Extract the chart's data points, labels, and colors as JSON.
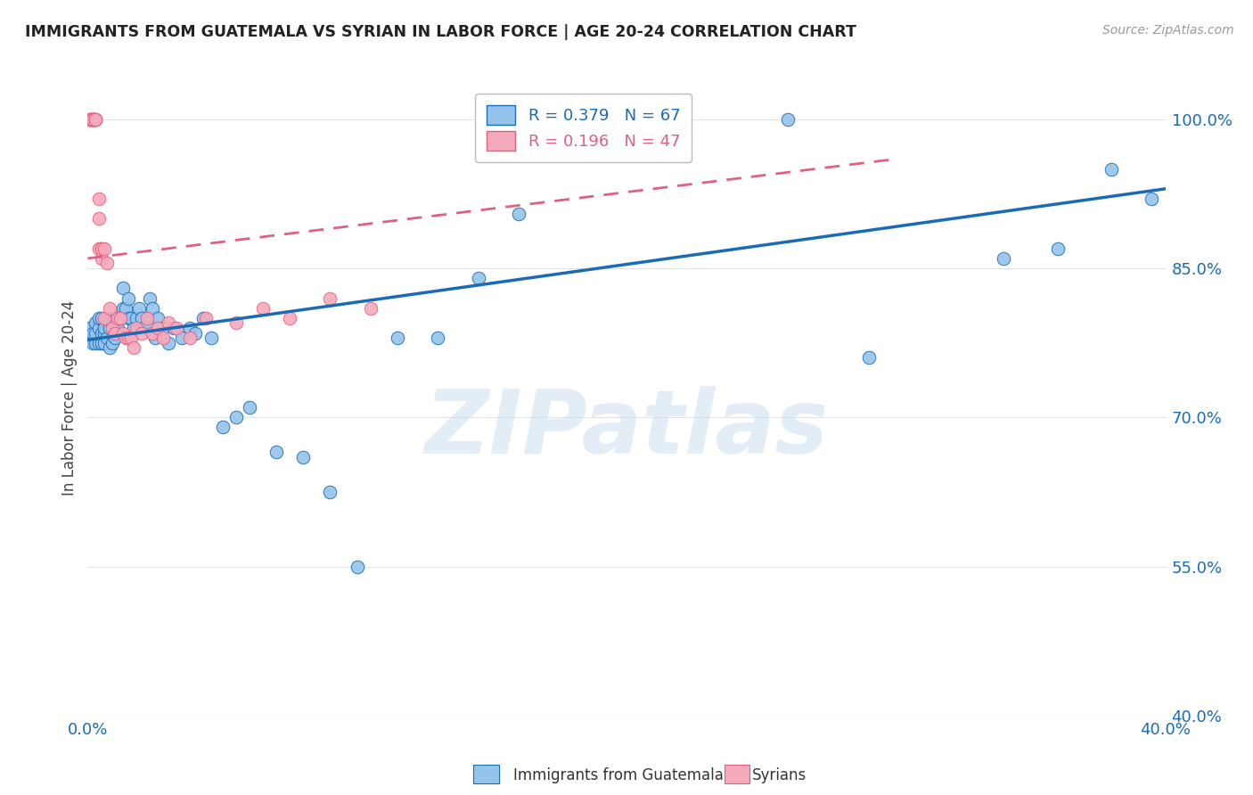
{
  "title": "IMMIGRANTS FROM GUATEMALA VS SYRIAN IN LABOR FORCE | AGE 20-24 CORRELATION CHART",
  "source": "Source: ZipAtlas.com",
  "ylabel": "In Labor Force | Age 20-24",
  "xlim": [
    0.0,
    0.4
  ],
  "ylim": [
    0.4,
    1.04
  ],
  "xticks": [
    0.0,
    0.05,
    0.1,
    0.15,
    0.2,
    0.25,
    0.3,
    0.35,
    0.4
  ],
  "yticks": [
    0.4,
    0.55,
    0.7,
    0.85,
    1.0
  ],
  "ytick_labels": [
    "40.0%",
    "55.0%",
    "70.0%",
    "85.0%",
    "100.0%"
  ],
  "xtick_labels": [
    "0.0%",
    "",
    "",
    "",
    "",
    "",
    "",
    "",
    "40.0%"
  ],
  "r_guatemala": 0.379,
  "n_guatemala": 67,
  "r_syrian": 0.196,
  "n_syrian": 47,
  "color_guatemala": "#94C4EC",
  "color_syrian": "#F5AABB",
  "trendline_guatemala_color": "#1A6BB5",
  "trendline_syrian_color": "#E06080",
  "watermark": "ZIPatlas",
  "background_color": "#ffffff",
  "guatemala_x": [
    0.001,
    0.001,
    0.002,
    0.002,
    0.003,
    0.003,
    0.003,
    0.004,
    0.004,
    0.004,
    0.005,
    0.005,
    0.005,
    0.006,
    0.006,
    0.006,
    0.007,
    0.007,
    0.008,
    0.008,
    0.009,
    0.009,
    0.01,
    0.01,
    0.011,
    0.012,
    0.013,
    0.013,
    0.014,
    0.015,
    0.015,
    0.016,
    0.017,
    0.018,
    0.019,
    0.02,
    0.021,
    0.022,
    0.023,
    0.024,
    0.025,
    0.026,
    0.028,
    0.03,
    0.032,
    0.035,
    0.038,
    0.04,
    0.043,
    0.046,
    0.05,
    0.055,
    0.06,
    0.07,
    0.08,
    0.09,
    0.1,
    0.115,
    0.13,
    0.145,
    0.16,
    0.26,
    0.29,
    0.34,
    0.36,
    0.38,
    0.395
  ],
  "guatemala_y": [
    0.78,
    0.79,
    0.775,
    0.785,
    0.775,
    0.785,
    0.795,
    0.775,
    0.79,
    0.8,
    0.775,
    0.785,
    0.8,
    0.775,
    0.785,
    0.79,
    0.78,
    0.8,
    0.77,
    0.79,
    0.775,
    0.795,
    0.78,
    0.8,
    0.79,
    0.8,
    0.81,
    0.83,
    0.81,
    0.8,
    0.82,
    0.8,
    0.79,
    0.8,
    0.81,
    0.8,
    0.79,
    0.795,
    0.82,
    0.81,
    0.78,
    0.8,
    0.79,
    0.775,
    0.79,
    0.78,
    0.79,
    0.785,
    0.8,
    0.78,
    0.69,
    0.7,
    0.71,
    0.665,
    0.66,
    0.625,
    0.55,
    0.78,
    0.78,
    0.84,
    0.905,
    1.0,
    0.76,
    0.86,
    0.87,
    0.95,
    0.92
  ],
  "syrian_x": [
    0.001,
    0.001,
    0.001,
    0.001,
    0.002,
    0.002,
    0.002,
    0.002,
    0.002,
    0.003,
    0.003,
    0.003,
    0.003,
    0.004,
    0.004,
    0.004,
    0.005,
    0.005,
    0.005,
    0.006,
    0.006,
    0.007,
    0.008,
    0.009,
    0.01,
    0.011,
    0.012,
    0.013,
    0.014,
    0.015,
    0.016,
    0.017,
    0.018,
    0.02,
    0.022,
    0.024,
    0.026,
    0.028,
    0.03,
    0.033,
    0.038,
    0.044,
    0.055,
    0.065,
    0.075,
    0.09,
    0.105
  ],
  "syrian_y": [
    1.0,
    1.0,
    1.0,
    1.0,
    1.0,
    1.0,
    1.0,
    1.0,
    1.0,
    1.0,
    1.0,
    1.0,
    1.0,
    0.92,
    0.9,
    0.87,
    0.87,
    0.86,
    0.87,
    0.87,
    0.8,
    0.855,
    0.81,
    0.79,
    0.785,
    0.8,
    0.8,
    0.785,
    0.78,
    0.78,
    0.78,
    0.77,
    0.79,
    0.785,
    0.8,
    0.785,
    0.79,
    0.78,
    0.795,
    0.79,
    0.78,
    0.8,
    0.795,
    0.81,
    0.8,
    0.82,
    0.81
  ],
  "trendline_g_x0": 0.0,
  "trendline_g_x1": 0.4,
  "trendline_g_y0": 0.778,
  "trendline_g_y1": 0.93,
  "trendline_s_x0": 0.0,
  "trendline_s_x1": 0.3,
  "trendline_s_y0": 0.86,
  "trendline_s_y1": 0.96
}
